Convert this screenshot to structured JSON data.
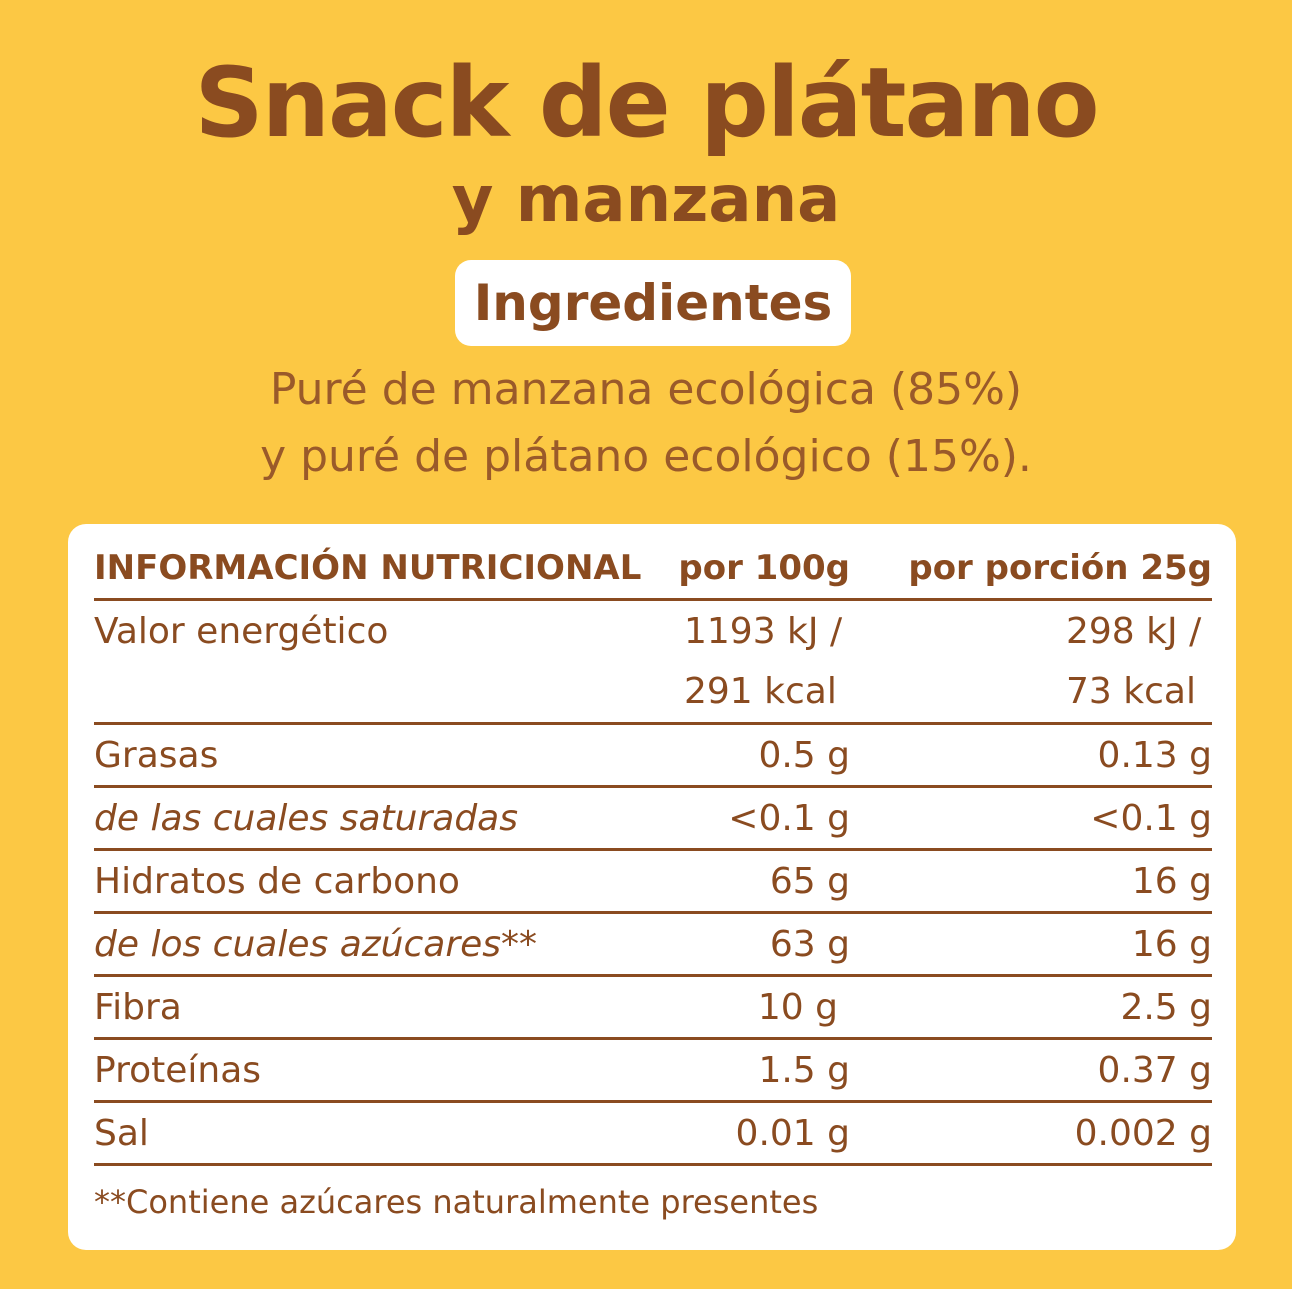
{
  "title": {
    "line1": "Snack de plátano",
    "line2": "y manzana"
  },
  "ingredients": {
    "heading": "Ingredientes",
    "line1": "Puré de manzana ecológica (85%)",
    "line2": "y puré de plátano ecológico (15%)."
  },
  "nutrition": {
    "header": {
      "label": "INFORMACIÓN NUTRICIONAL",
      "per100": "por 100g",
      "perPortion": "por porción 25g"
    },
    "energy": {
      "label": "Valor energético",
      "per100_kj": "1193 kJ /",
      "per100_kcal": "291 kcal",
      "portion_kj": "298 kJ /",
      "portion_kcal": "73 kcal"
    },
    "rows": [
      {
        "label": "Grasas",
        "per100": "0.5 g",
        "perPortion": "0.13 g"
      },
      {
        "label": "de las cuales saturadas",
        "per100": "<0.1 g",
        "perPortion": "<0.1 g"
      },
      {
        "label": "Hidratos de carbono",
        "per100": "65 g",
        "perPortion": "16 g"
      },
      {
        "label": "de los cuales azúcares**",
        "per100": "63 g",
        "perPortion": "16 g"
      },
      {
        "label": "Fibra",
        "per100": "10 g",
        "perPortion": "2.5 g"
      },
      {
        "label": "Proteínas",
        "per100": "1.5 g",
        "perPortion": "0.37 g"
      },
      {
        "label": "Sal",
        "per100": "0.01 g",
        "perPortion": "0.002 g"
      }
    ],
    "footnote": "**Contiene azúcares naturalmente presentes"
  },
  "colors": {
    "background": "#FCC844",
    "text": "#8A4B20",
    "card": "#FFFFFF"
  }
}
